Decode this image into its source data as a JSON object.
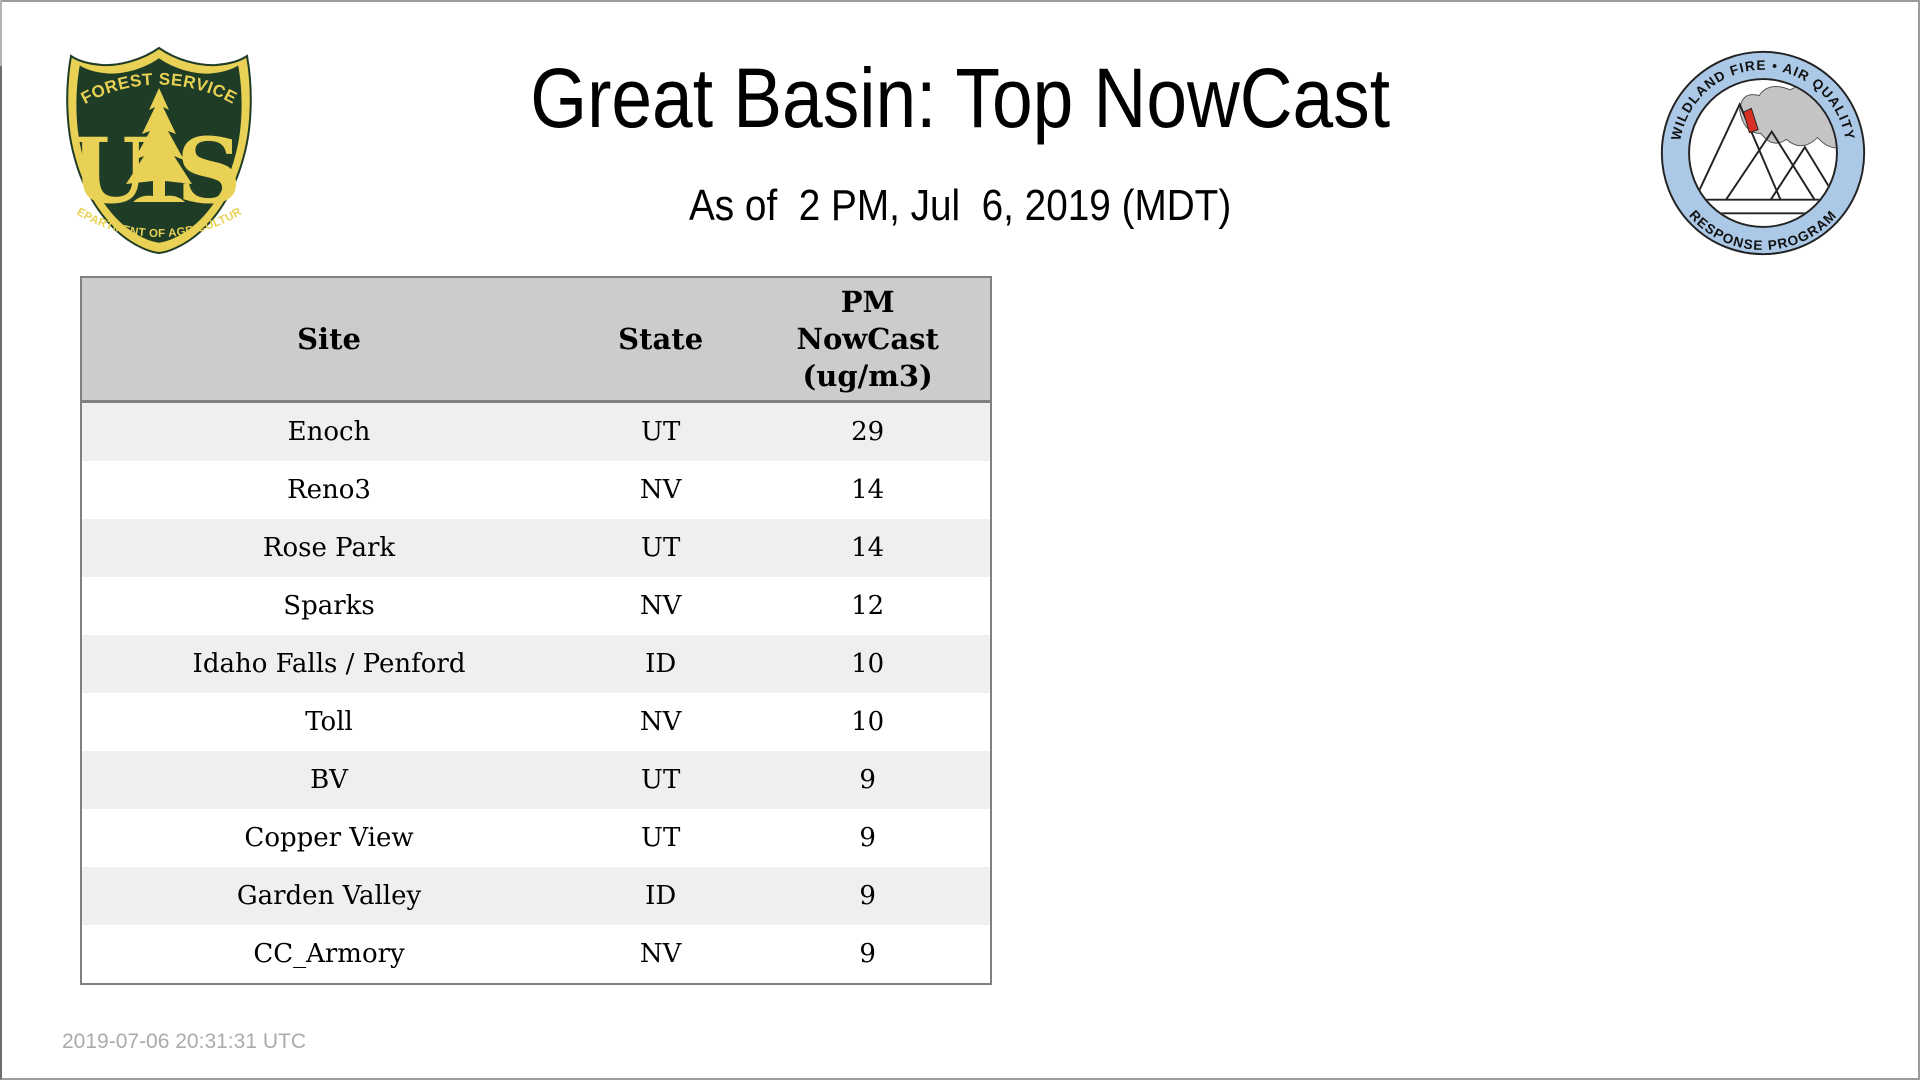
{
  "header": {
    "title": "Great Basin: Top NowCast",
    "subtitle": "As of  2 PM, Jul  6, 2019 (MDT)"
  },
  "logos": {
    "usfs": {
      "top_arc": "FOREST SERVICE",
      "left_letter": "U",
      "right_letter": "S",
      "bottom_arc": "DEPARTMENT OF AGRICULTURE",
      "green": "#1e3c26",
      "gold": "#e8d155"
    },
    "wfaqrp": {
      "top_arc": "WILDLAND FIRE • AIR QUALITY",
      "bottom_arc": "RESPONSE PROGRAM",
      "ring_blue": "#abc9e6",
      "smoke_gray": "#c4c4c4",
      "flame_red": "#d93025"
    }
  },
  "table": {
    "headers": [
      "Site",
      "State",
      "PM\nNowCast\n(ug/m3)"
    ],
    "header_bg": "#cccccc",
    "row_alt_bg": "#efefef",
    "border_color": "#808080",
    "rows": [
      [
        "Enoch",
        "UT",
        "29"
      ],
      [
        "Reno3",
        "NV",
        "14"
      ],
      [
        "Rose Park",
        "UT",
        "14"
      ],
      [
        "Sparks",
        "NV",
        "12"
      ],
      [
        "Idaho Falls / Penford",
        "ID",
        "10"
      ],
      [
        "Toll",
        "NV",
        "10"
      ],
      [
        "BV",
        "UT",
        "9"
      ],
      [
        "Copper View",
        "UT",
        "9"
      ],
      [
        "Garden Valley",
        "ID",
        "9"
      ],
      [
        "CC_Armory",
        "NV",
        "9"
      ]
    ]
  },
  "footer": {
    "timestamp": "2019-07-06 20:31:31 UTC"
  },
  "chart_data": {
    "type": "table",
    "title": "Great Basin: Top NowCast",
    "subtitle": "As of  2 PM, Jul  6, 2019 (MDT)",
    "columns": [
      "Site",
      "State",
      "PM NowCast (ug/m3)"
    ],
    "rows": [
      [
        "Enoch",
        "UT",
        29
      ],
      [
        "Reno3",
        "NV",
        14
      ],
      [
        "Rose Park",
        "UT",
        14
      ],
      [
        "Sparks",
        "NV",
        12
      ],
      [
        "Idaho Falls / Penford",
        "ID",
        10
      ],
      [
        "Toll",
        "NV",
        10
      ],
      [
        "BV",
        "UT",
        9
      ],
      [
        "Copper View",
        "UT",
        9
      ],
      [
        "Garden Valley",
        "ID",
        9
      ],
      [
        "CC_Armory",
        "NV",
        9
      ]
    ]
  }
}
